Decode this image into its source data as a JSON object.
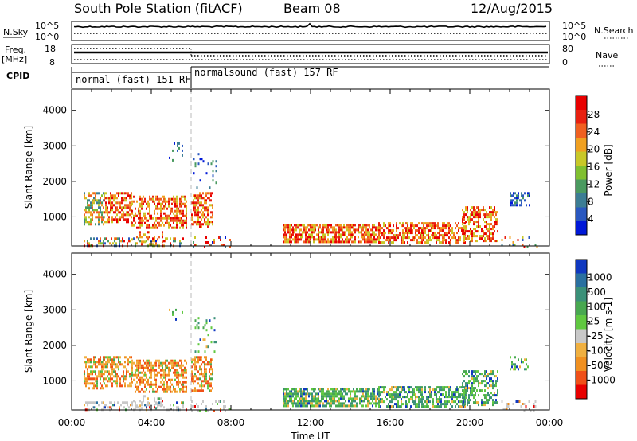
{
  "header": {
    "title": "South Pole Station (fitACF)",
    "beam": "Beam 08",
    "date": "12/Aug/2015"
  },
  "top_panels": {
    "nsky_label": "N.Sky",
    "nsky_ticks": [
      "10^5",
      "10^0"
    ],
    "nsearch_label": "N.Search",
    "nsearch_ticks": [
      "10^5",
      "10^0"
    ],
    "freq_label": "Freq.",
    "freq_unit": "[MHz]",
    "freq_ticks": [
      "18",
      "8"
    ],
    "nave_label": "Nave",
    "nave_ticks": [
      "80",
      "0"
    ],
    "cpid_label": "CPID",
    "cpid_segments": [
      {
        "label": "normal (fast) 151 RF",
        "start_hour": 0,
        "end_hour": 6
      },
      {
        "label": "normalsound (fast) 157 RF",
        "start_hour": 6,
        "end_hour": 24
      }
    ]
  },
  "chart_data": [
    {
      "type": "heatmap",
      "name": "power-panel",
      "ylabel": "Slant Range [km]",
      "xlim": [
        0,
        24
      ],
      "ylim": [
        180,
        4600
      ],
      "yticks": [
        "1000",
        "2000",
        "3000",
        "4000"
      ],
      "colorbar": {
        "label": "Power [dB]",
        "ticks": [
          "28",
          "24",
          "20",
          "16",
          "12",
          "8",
          "4"
        ],
        "colors": [
          "#0018d8",
          "#2a58c0",
          "#3c7d94",
          "#4a9a60",
          "#80c030",
          "#c8c828",
          "#f0a020",
          "#f06020",
          "#e82010",
          "#e80000"
        ]
      }
    },
    {
      "type": "heatmap",
      "name": "velocity-panel",
      "ylabel": "Slant Range [km]",
      "xlabel": "Time UT",
      "xlim": [
        0,
        24
      ],
      "ylim": [
        180,
        4600
      ],
      "yticks": [
        "1000",
        "2000",
        "3000",
        "4000"
      ],
      "xticks": [
        "00:00",
        "04:00",
        "08:00",
        "12:00",
        "16:00",
        "20:00",
        "00:00"
      ],
      "colorbar": {
        "label": "Velocity [m s-1]",
        "ticks": [
          "1000",
          "500",
          "100",
          "25",
          "-25",
          "-100",
          "-500",
          "-1000"
        ],
        "colors": [
          "#1038c0",
          "#2a70a0",
          "#3a9078",
          "#48a850",
          "#60c840",
          "#c8c8c8",
          "#f0b040",
          "#f09020",
          "#f05018",
          "#e80000"
        ]
      }
    }
  ]
}
